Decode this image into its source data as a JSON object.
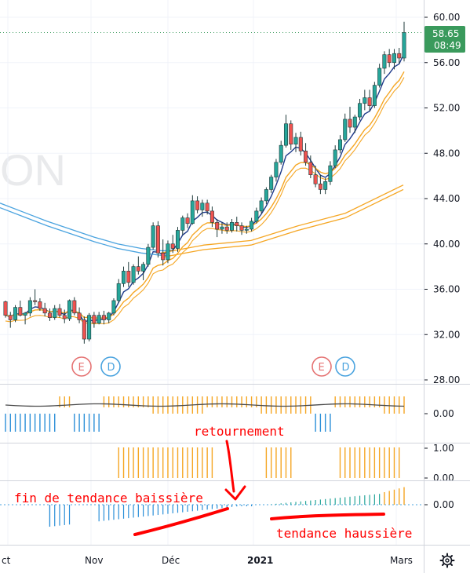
{
  "watermark": "ON",
  "chart_data": {
    "type": "candlestick",
    "price_axis": {
      "ticks": [
        "60.00",
        "56.00",
        "52.00",
        "48.00",
        "44.00",
        "40.00",
        "36.00",
        "32.00",
        "28.00"
      ],
      "ylim": [
        27.4,
        61.4
      ]
    },
    "time_axis": {
      "labels": [
        "ct",
        "Nov",
        "Déc",
        "2021",
        "Mars"
      ]
    },
    "last_price": {
      "value": "58.65",
      "countdown": "08:49"
    },
    "candles_ohlc": [
      [
        34.9,
        35.0,
        33.5,
        33.7
      ],
      [
        33.7,
        34.0,
        32.6,
        33.3
      ],
      [
        33.3,
        34.6,
        33.1,
        34.4
      ],
      [
        34.4,
        35.0,
        33.6,
        33.7
      ],
      [
        33.7,
        34.0,
        32.9,
        33.9
      ],
      [
        33.9,
        35.3,
        33.6,
        35.0
      ],
      [
        35.0,
        36.0,
        34.6,
        34.9
      ],
      [
        34.9,
        35.2,
        34.1,
        34.3
      ],
      [
        34.3,
        34.8,
        33.6,
        33.9
      ],
      [
        33.9,
        34.3,
        33.2,
        33.5
      ],
      [
        33.5,
        34.6,
        33.3,
        34.3
      ],
      [
        34.3,
        34.7,
        33.5,
        33.7
      ],
      [
        33.7,
        34.2,
        33.0,
        33.4
      ],
      [
        33.4,
        35.1,
        33.2,
        35.0
      ],
      [
        35.0,
        35.3,
        33.7,
        33.9
      ],
      [
        33.9,
        34.4,
        33.0,
        33.3
      ],
      [
        33.3,
        33.6,
        31.2,
        31.6
      ],
      [
        31.6,
        33.9,
        31.4,
        33.7
      ],
      [
        33.7,
        34.0,
        32.6,
        33.0
      ],
      [
        33.0,
        34.0,
        32.9,
        33.7
      ],
      [
        33.7,
        34.1,
        32.9,
        33.3
      ],
      [
        33.3,
        34.0,
        33.0,
        33.9
      ],
      [
        33.9,
        35.2,
        33.7,
        35.0
      ],
      [
        35.0,
        36.9,
        34.8,
        36.5
      ],
      [
        36.5,
        38.0,
        36.2,
        37.6
      ],
      [
        37.6,
        38.4,
        36.2,
        36.6
      ],
      [
        36.6,
        38.2,
        36.4,
        38.0
      ],
      [
        38.0,
        38.9,
        37.3,
        37.6
      ],
      [
        37.6,
        38.4,
        36.8,
        38.2
      ],
      [
        38.2,
        40.0,
        38.0,
        39.7
      ],
      [
        39.7,
        41.9,
        39.5,
        41.6
      ],
      [
        41.6,
        42.0,
        38.8,
        39.2
      ],
      [
        39.2,
        40.4,
        38.1,
        38.6
      ],
      [
        38.6,
        40.3,
        38.3,
        40.0
      ],
      [
        40.0,
        40.8,
        39.2,
        39.6
      ],
      [
        39.6,
        41.5,
        39.3,
        41.2
      ],
      [
        41.2,
        42.5,
        40.8,
        42.3
      ],
      [
        42.3,
        42.7,
        41.4,
        41.8
      ],
      [
        41.8,
        44.3,
        41.7,
        43.8
      ],
      [
        43.8,
        44.2,
        42.7,
        43.0
      ],
      [
        43.0,
        43.9,
        42.4,
        43.6
      ],
      [
        43.6,
        43.9,
        42.6,
        42.9
      ],
      [
        42.9,
        43.3,
        41.5,
        41.9
      ],
      [
        41.9,
        42.2,
        40.6,
        41.3
      ],
      [
        41.3,
        41.9,
        40.9,
        41.5
      ],
      [
        41.5,
        41.9,
        40.9,
        41.2
      ],
      [
        41.2,
        42.2,
        41.0,
        41.9
      ],
      [
        41.9,
        42.4,
        41.1,
        41.6
      ],
      [
        41.6,
        41.9,
        40.8,
        41.2
      ],
      [
        41.2,
        41.6,
        40.9,
        41.3
      ],
      [
        41.3,
        42.3,
        41.1,
        42.0
      ],
      [
        42.0,
        43.2,
        41.8,
        42.9
      ],
      [
        42.9,
        44.1,
        42.7,
        43.8
      ],
      [
        43.8,
        45.0,
        43.5,
        44.8
      ],
      [
        44.8,
        46.1,
        44.5,
        45.9
      ],
      [
        45.9,
        47.5,
        45.5,
        47.2
      ],
      [
        47.2,
        49.1,
        47.0,
        48.7
      ],
      [
        48.7,
        51.4,
        48.5,
        50.6
      ],
      [
        50.6,
        50.9,
        48.3,
        48.8
      ],
      [
        48.8,
        49.8,
        48.1,
        49.4
      ],
      [
        49.4,
        49.9,
        47.8,
        48.2
      ],
      [
        48.2,
        48.9,
        46.9,
        47.2
      ],
      [
        47.2,
        47.8,
        45.8,
        46.1
      ],
      [
        46.1,
        46.9,
        45.0,
        45.3
      ],
      [
        45.3,
        46.1,
        44.4,
        44.8
      ],
      [
        44.8,
        45.8,
        44.4,
        45.5
      ],
      [
        45.5,
        47.3,
        45.2,
        46.9
      ],
      [
        46.9,
        48.7,
        46.7,
        48.3
      ],
      [
        48.3,
        49.6,
        48.0,
        49.2
      ],
      [
        49.2,
        51.5,
        49.0,
        51.0
      ],
      [
        51.0,
        52.1,
        49.8,
        50.3
      ],
      [
        50.3,
        51.4,
        49.8,
        51.2
      ],
      [
        51.2,
        52.8,
        50.9,
        52.4
      ],
      [
        52.4,
        53.6,
        51.8,
        52.9
      ],
      [
        52.9,
        53.6,
        51.7,
        52.2
      ],
      [
        52.2,
        54.3,
        52.0,
        54.0
      ],
      [
        54.0,
        55.9,
        53.8,
        55.5
      ],
      [
        55.5,
        57.0,
        55.0,
        56.7
      ],
      [
        56.7,
        57.2,
        55.6,
        56.0
      ],
      [
        56.0,
        57.2,
        55.4,
        56.8
      ],
      [
        56.8,
        57.3,
        55.9,
        56.4
      ],
      [
        56.4,
        59.6,
        56.1,
        58.65
      ]
    ],
    "event_markers": [
      {
        "label": "E"
      },
      {
        "label": "D"
      },
      {
        "label": "E"
      },
      {
        "label": "D"
      }
    ],
    "indicator_panes": [
      {
        "ticks": [
          "0.00"
        ]
      },
      {
        "ticks": [
          "1.00",
          "0.00"
        ]
      },
      {
        "ticks": [
          "0.00"
        ]
      }
    ],
    "colors": {
      "up": "#26a69a",
      "down": "#ef5350",
      "candle_body_dark": "#1f3b3b",
      "ema_fast": "#1e3a8a",
      "ema_slow": "#f5a623",
      "ema_long": "#4aa3df",
      "histogram_up": "#f5a623",
      "histogram_down": "#2a8fd8",
      "slope_up": "#26a69a",
      "annotation": "#ff0000",
      "price_tag": "#3a9a5c"
    },
    "annotations": {
      "reversal": "retournement",
      "downtrend_end": "fin de tendance baissière",
      "uptrend": "tendance haussière"
    }
  }
}
